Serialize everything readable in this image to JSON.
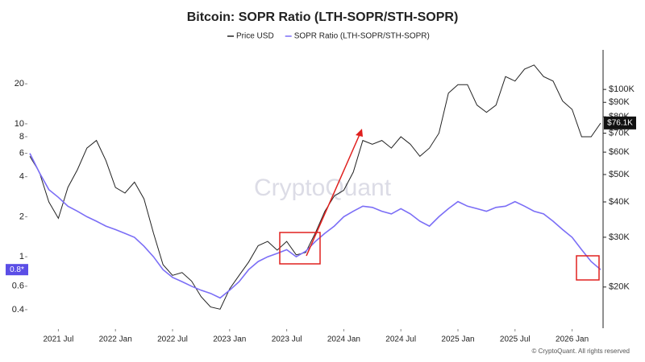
{
  "chart_data": {
    "type": "line",
    "title": "Bitcoin: SOPR Ratio (LTH-SOPR/STH-SOPR)",
    "watermark": "CryptoQuant",
    "footer": "© CryptoQuant. All rights reserved",
    "x": [
      "2021-04",
      "2021-05",
      "2021-06",
      "2021-07",
      "2021-08",
      "2021-09",
      "2021-10",
      "2021-11",
      "2021-12",
      "2022-01",
      "2022-02",
      "2022-03",
      "2022-04",
      "2022-05",
      "2022-06",
      "2022-07",
      "2022-08",
      "2022-09",
      "2022-10",
      "2022-11",
      "2022-12",
      "2023-01",
      "2023-02",
      "2023-03",
      "2023-04",
      "2023-05",
      "2023-06",
      "2023-07",
      "2023-08",
      "2023-09",
      "2023-10",
      "2023-11",
      "2023-12",
      "2024-01",
      "2024-02",
      "2024-03",
      "2024-04",
      "2024-05",
      "2024-06",
      "2024-07",
      "2024-08",
      "2024-09",
      "2024-10",
      "2024-11",
      "2024-12",
      "2025-01",
      "2025-02",
      "2025-03",
      "2025-04",
      "2025-05",
      "2025-06",
      "2025-07",
      "2025-08",
      "2025-09",
      "2025-10",
      "2025-11",
      "2025-12",
      "2026-01",
      "2026-02",
      "2026-03",
      "2026-04"
    ],
    "xlim": [
      "2021-04",
      "2026-04"
    ],
    "xticks": [
      {
        "value": "2021-07",
        "label": "2021 Jul"
      },
      {
        "value": "2022-01",
        "label": "2022 Jan"
      },
      {
        "value": "2022-07",
        "label": "2022 Jul"
      },
      {
        "value": "2023-01",
        "label": "2023 Jan"
      },
      {
        "value": "2023-07",
        "label": "2023 Jul"
      },
      {
        "value": "2024-01",
        "label": "2024 Jan"
      },
      {
        "value": "2024-07",
        "label": "2024 Jul"
      },
      {
        "value": "2025-01",
        "label": "2025 Jan"
      },
      {
        "value": "2025-07",
        "label": "2025 Jul"
      },
      {
        "value": "2026-01",
        "label": "2026 Jan"
      }
    ],
    "log_scale": true,
    "ylim": [
      0.29,
      36
    ],
    "yticks": [
      0.4,
      0.6,
      1,
      2,
      4,
      6,
      8,
      10,
      20
    ],
    "y2lim": [
      14300,
      138000
    ],
    "y2ticks": [
      {
        "value": 20000,
        "label": "$20K"
      },
      {
        "value": 30000,
        "label": "$30K"
      },
      {
        "value": 40000,
        "label": "$40K"
      },
      {
        "value": 50000,
        "label": "$50K"
      },
      {
        "value": 60000,
        "label": "$60K"
      },
      {
        "value": 70000,
        "label": "$70K"
      },
      {
        "value": 80000,
        "label": "$80K"
      },
      {
        "value": 90000,
        "label": "$90K"
      },
      {
        "value": 100000,
        "label": "$100K"
      }
    ],
    "left_marker": {
      "value": 0.8,
      "label": "0.8*"
    },
    "right_marker": {
      "value": 76100,
      "label": "$76.1K"
    },
    "series": [
      {
        "name": "Price USD",
        "color": "#222222",
        "axis": "y2",
        "values": [
          58000,
          51000,
          40000,
          35000,
          45000,
          52000,
          62000,
          66000,
          56000,
          45000,
          43000,
          47000,
          41000,
          31000,
          24000,
          22000,
          22500,
          21000,
          18500,
          17000,
          16700,
          19700,
          22000,
          24500,
          28000,
          29000,
          27000,
          29000,
          26000,
          26500,
          31000,
          37000,
          42000,
          44000,
          51000,
          66000,
          64000,
          66000,
          62000,
          68000,
          64000,
          58000,
          62000,
          70000,
          97000,
          104000,
          104000,
          88000,
          83000,
          88000,
          111000,
          107000,
          118000,
          122000,
          111000,
          107000,
          91000,
          85000,
          68000,
          68000,
          76000
        ]
      },
      {
        "name": "SOPR Ratio (LTH-SOPR/STH-SOPR)",
        "color": "#7b6ef6",
        "axis": "y",
        "values": [
          6,
          4.3,
          3.2,
          2.8,
          2.4,
          2.2,
          2.0,
          1.85,
          1.7,
          1.6,
          1.5,
          1.4,
          1.2,
          1.0,
          0.8,
          0.7,
          0.65,
          0.6,
          0.56,
          0.53,
          0.49,
          0.56,
          0.65,
          0.8,
          0.92,
          1.0,
          1.06,
          1.13,
          1.0,
          1.1,
          1.3,
          1.5,
          1.7,
          2.0,
          2.2,
          2.4,
          2.35,
          2.2,
          2.1,
          2.3,
          2.1,
          1.85,
          1.7,
          2.0,
          2.3,
          2.6,
          2.4,
          2.3,
          2.2,
          2.35,
          2.4,
          2.6,
          2.4,
          2.2,
          2.1,
          1.85,
          1.6,
          1.4,
          1.13,
          0.92,
          0.8
        ]
      }
    ]
  }
}
